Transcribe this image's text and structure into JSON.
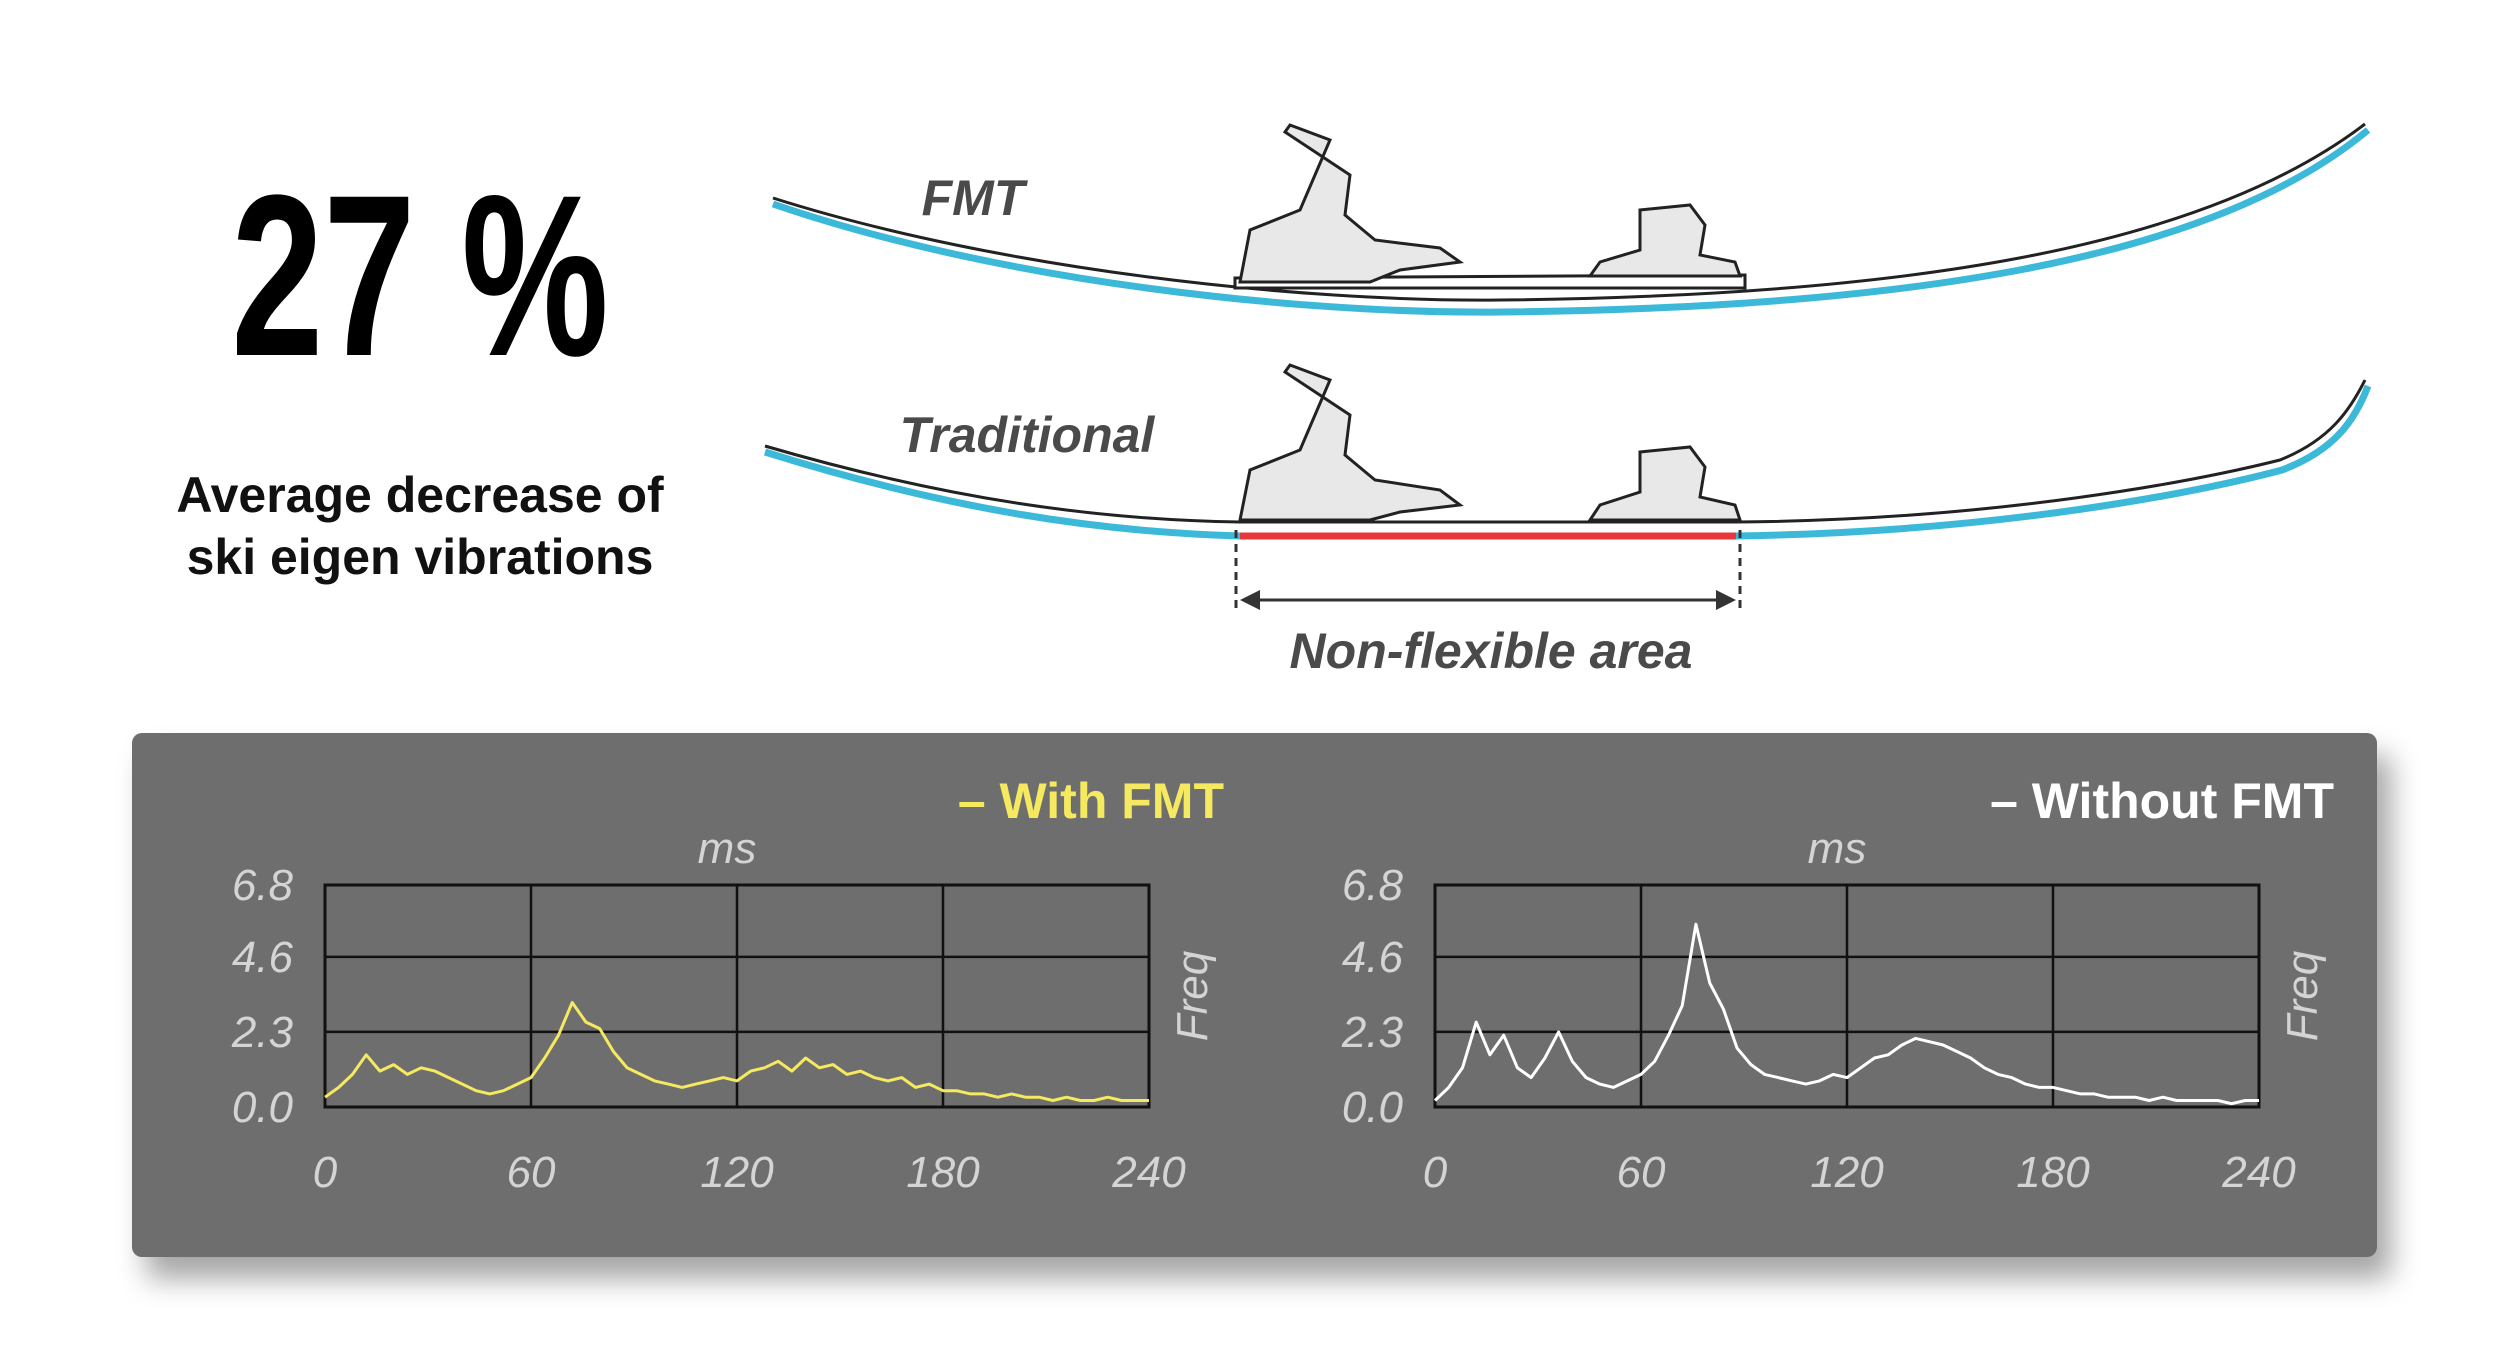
{
  "headline": "27 %",
  "caption": [
    "Average decrease of",
    "ski eigen vibrations"
  ],
  "skis": {
    "top_label": "FMT",
    "bottom_label": "Traditional",
    "area_label": "Non-flexible area"
  },
  "chart_data": [
    {
      "type": "line",
      "x_label": "ms",
      "y_label": "Freq",
      "x": [
        0,
        4,
        8,
        12,
        16,
        20,
        24,
        28,
        32,
        36,
        40,
        44,
        48,
        52,
        56,
        60,
        64,
        68,
        72,
        76,
        80,
        84,
        88,
        92,
        96,
        100,
        104,
        108,
        112,
        116,
        120,
        124,
        128,
        132,
        136,
        140,
        144,
        148,
        152,
        156,
        160,
        164,
        168,
        172,
        176,
        180,
        184,
        188,
        192,
        196,
        200,
        204,
        208,
        212,
        216,
        220,
        224,
        228,
        232,
        236,
        240
      ],
      "series": [
        {
          "name": "– With FMT",
          "color": "#f5e960",
          "values": [
            0.3,
            0.6,
            1.0,
            1.6,
            1.1,
            1.3,
            1.0,
            1.2,
            1.1,
            0.9,
            0.7,
            0.5,
            0.4,
            0.5,
            0.7,
            0.9,
            1.5,
            2.2,
            3.2,
            2.6,
            2.4,
            1.7,
            1.2,
            1.0,
            0.8,
            0.7,
            0.6,
            0.7,
            0.8,
            0.9,
            0.8,
            1.1,
            1.2,
            1.4,
            1.1,
            1.5,
            1.2,
            1.3,
            1.0,
            1.1,
            0.9,
            0.8,
            0.9,
            0.6,
            0.7,
            0.5,
            0.5,
            0.4,
            0.4,
            0.3,
            0.4,
            0.3,
            0.3,
            0.2,
            0.3,
            0.2,
            0.2,
            0.3,
            0.2,
            0.2,
            0.2
          ]
        }
      ],
      "xlim": [
        0,
        240
      ],
      "xticks": [
        0,
        60,
        120,
        180,
        240
      ],
      "ylim": [
        0,
        6.8
      ],
      "yticks": [
        {
          "value": 0,
          "label": "0.0"
        },
        2.3,
        4.6,
        6.8
      ],
      "grid": true
    },
    {
      "type": "line",
      "x_label": "ms",
      "y_label": "Freq",
      "x": [
        0,
        4,
        8,
        12,
        16,
        20,
        24,
        28,
        32,
        36,
        40,
        44,
        48,
        52,
        56,
        60,
        64,
        68,
        72,
        76,
        80,
        84,
        88,
        92,
        96,
        100,
        104,
        108,
        112,
        116,
        120,
        124,
        128,
        132,
        136,
        140,
        144,
        148,
        152,
        156,
        160,
        164,
        168,
        172,
        176,
        180,
        184,
        188,
        192,
        196,
        200,
        204,
        208,
        212,
        216,
        220,
        224,
        228,
        232,
        236,
        240
      ],
      "series": [
        {
          "name": "– Without FMT",
          "color": "#ffffff",
          "values": [
            0.2,
            0.6,
            1.2,
            2.6,
            1.6,
            2.2,
            1.2,
            0.9,
            1.5,
            2.3,
            1.4,
            0.9,
            0.7,
            0.6,
            0.8,
            1.0,
            1.4,
            2.2,
            3.1,
            5.6,
            3.8,
            3.0,
            1.8,
            1.3,
            1.0,
            0.9,
            0.8,
            0.7,
            0.8,
            1.0,
            0.9,
            1.2,
            1.5,
            1.6,
            1.9,
            2.1,
            2.0,
            1.9,
            1.7,
            1.5,
            1.2,
            1.0,
            0.9,
            0.7,
            0.6,
            0.6,
            0.5,
            0.4,
            0.4,
            0.3,
            0.3,
            0.3,
            0.2,
            0.3,
            0.2,
            0.2,
            0.2,
            0.2,
            0.1,
            0.2,
            0.2
          ]
        }
      ],
      "xlim": [
        0,
        240
      ],
      "xticks": [
        0,
        60,
        120,
        180,
        240
      ],
      "ylim": [
        0,
        6.8
      ],
      "yticks": [
        {
          "value": 0,
          "label": "0.0"
        },
        2.3,
        4.6,
        6.8
      ],
      "grid": true
    }
  ]
}
